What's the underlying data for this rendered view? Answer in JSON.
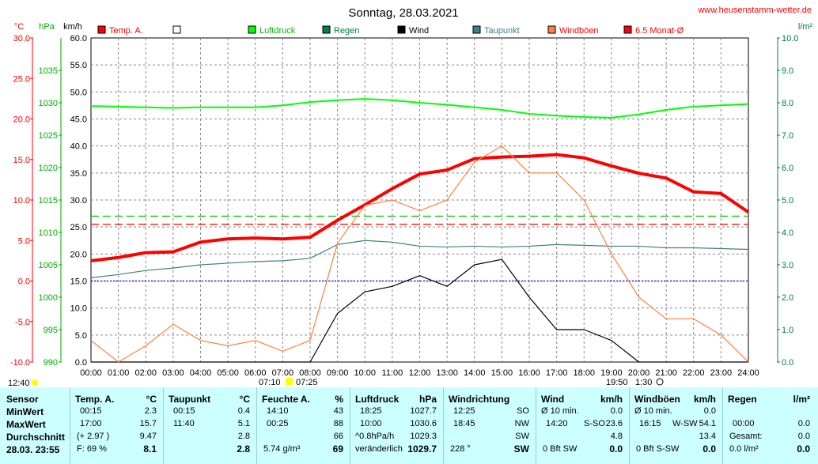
{
  "title": "Sonntag, 28.03.2021",
  "site": "www.heusenstamm-wetter.de",
  "units": {
    "temp": "°C",
    "hpa": "hPa",
    "kmh": "km/h",
    "rain": "l/m²"
  },
  "legend": [
    {
      "label": "Temp. A.",
      "color": "#ff0000"
    },
    {
      "label": "",
      "color": "#ffffff"
    },
    {
      "label": "Luftdruck",
      "color": "#00ff00"
    },
    {
      "label": "Regen",
      "color": "#008040"
    },
    {
      "label": "Wind",
      "color": "#000000"
    },
    {
      "label": "Taupunkt",
      "color": "#408080"
    },
    {
      "label": "Windböen",
      "color": "#ff8040"
    },
    {
      "label": "6.5 Monat-Ø",
      "color": "#ff0000"
    }
  ],
  "axes": {
    "temp_ticks": [
      "30.0",
      "25.0",
      "20.0",
      "15.0",
      "10.0",
      "5.0",
      "0.0",
      "-5.0",
      "-10.0"
    ],
    "hpa_ticks": [
      "1035",
      "1030",
      "1025",
      "1020",
      "1015",
      "1010",
      "1005",
      "1000",
      "995",
      "990"
    ],
    "kmh_ticks": [
      "60.0",
      "55.0",
      "50.0",
      "45.0",
      "40.0",
      "35.0",
      "30.0",
      "25.0",
      "20.0",
      "15.0",
      "10.0",
      "5.0",
      "0.0"
    ],
    "rain_ticks": [
      "10.0",
      "9.0",
      "8.0",
      "7.0",
      "6.0",
      "5.0",
      "4.0",
      "3.0",
      "2.0",
      "1.0",
      "0.0"
    ],
    "time_ticks": [
      "00:00",
      "01:00",
      "02:00",
      "03:00",
      "04:00",
      "05:00",
      "06:00",
      "07:00",
      "08:00",
      "09:00",
      "10:00",
      "11:00",
      "12:00",
      "13:00",
      "14:00",
      "15:00",
      "16:00",
      "17:00",
      "18:00",
      "19:00",
      "20:00",
      "21:00",
      "22:00",
      "23:00",
      "24:00"
    ]
  },
  "markers": {
    "left_time": "12:40",
    "sunrise": "07:10",
    "sunrise2": "07:25",
    "sunset": "19:50",
    "moon": "1:30"
  },
  "chart_data": {
    "type": "line",
    "x": [
      "00:00",
      "01:00",
      "02:00",
      "03:00",
      "04:00",
      "05:00",
      "06:00",
      "07:00",
      "08:00",
      "09:00",
      "10:00",
      "11:00",
      "12:00",
      "13:00",
      "14:00",
      "15:00",
      "16:00",
      "17:00",
      "18:00",
      "19:00",
      "20:00",
      "21:00",
      "22:00",
      "23:00",
      "24:00"
    ],
    "series": [
      {
        "name": "Temp. A.",
        "unit": "°C",
        "color": "#ff0000",
        "values": [
          2.5,
          2.9,
          3.5,
          3.6,
          4.8,
          5.2,
          5.3,
          5.2,
          5.4,
          7.5,
          9.4,
          11.4,
          13.2,
          13.7,
          15.1,
          15.3,
          15.4,
          15.6,
          15.2,
          14.2,
          13.3,
          12.7,
          11.0,
          10.8,
          8.5
        ]
      },
      {
        "name": "Luftdruck",
        "unit": "hPa",
        "color": "#00ff00",
        "values": [
          1029.5,
          1029.4,
          1029.3,
          1029.2,
          1029.3,
          1029.3,
          1029.3,
          1029.6,
          1030.1,
          1030.4,
          1030.6,
          1030.4,
          1030.0,
          1029.7,
          1029.3,
          1028.9,
          1028.3,
          1028.0,
          1027.8,
          1027.7,
          1028.2,
          1028.9,
          1029.4,
          1029.6,
          1029.8
        ]
      },
      {
        "name": "Taupunkt",
        "unit": "°C",
        "color": "#408080",
        "values": [
          0.4,
          0.8,
          1.3,
          1.6,
          2.0,
          2.2,
          2.4,
          2.5,
          2.8,
          4.5,
          5.0,
          4.8,
          4.3,
          4.2,
          4.3,
          4.2,
          4.3,
          4.5,
          4.4,
          4.3,
          4.3,
          4.1,
          4.1,
          4.0,
          3.9
        ]
      },
      {
        "name": "Wind",
        "unit": "km/h",
        "color": "#000000",
        "values": [
          0,
          0,
          0,
          0,
          0,
          0,
          0,
          0,
          0,
          9.0,
          13.0,
          14.0,
          16.0,
          14.0,
          18.0,
          19.0,
          12.0,
          6.0,
          6.0,
          4.0,
          0,
          0,
          0,
          0,
          0
        ]
      },
      {
        "name": "Windböen",
        "unit": "km/h",
        "color": "#ff8040",
        "values": [
          4,
          0,
          3,
          7,
          4,
          3,
          4,
          2,
          4,
          22,
          29,
          30,
          28,
          30,
          37,
          40,
          35,
          35,
          30,
          20,
          12,
          8,
          8,
          5,
          0
        ]
      }
    ],
    "reference_lines": [
      {
        "name": "6.5 Monat-Ø",
        "temp": 7.0,
        "color": "#ff0000"
      },
      {
        "hpa": 1012.5,
        "color": "#00c000"
      },
      {
        "kmh": 15.0,
        "color": "#0000ff"
      }
    ],
    "ylim_temp": [
      -10,
      30
    ],
    "ylim_hpa": [
      990,
      1040
    ],
    "ylim_kmh": [
      0,
      60
    ],
    "ylim_rain": [
      0,
      10
    ]
  },
  "stats": {
    "sensor": {
      "hdr": "Sensor",
      "min": "MinWert",
      "max": "MaxWert",
      "avg": "Durchschnitt",
      "date": "28.03. 23:55"
    },
    "temp": {
      "hdr": "Temp. A.",
      "unit": "°C",
      "min_time": "00:15",
      "min": "2.3",
      "max_time": "17:00",
      "max": "15.7",
      "avg_note": "(+ 2.97 )",
      "avg": "9.47",
      "cur_note": "F: 69 %",
      "cur": "8.1"
    },
    "dew": {
      "hdr": "Taupunkt",
      "unit": "°C",
      "min_time": "00:15",
      "min": "0.4",
      "max_time": "11:40",
      "max": "5.1",
      "avg": "2.8",
      "cur": "2.8"
    },
    "hum": {
      "hdr": "Feuchte A.",
      "unit": "%",
      "min_time": "14:10",
      "min": "43",
      "max_time": "00:25",
      "max": "88",
      "avg": "66",
      "cur_note": "5.74 g/m³",
      "cur": "69"
    },
    "press": {
      "hdr": "Luftdruck",
      "unit": "hPa",
      "min_time": "18:25",
      "min": "1027.7",
      "max_time": "10:00",
      "max": "1030.6",
      "avg_note": "^0.8hPa/h",
      "avg": "1029.3",
      "cur_note": "veränderlich",
      "cur": "1029.7"
    },
    "dir": {
      "hdr": "Windrichtung",
      "min_time": "12:25",
      "min": "SO",
      "max_time": "18:45",
      "max": "NW",
      "avg": "SW",
      "cur_note": "228 °",
      "cur": "SW"
    },
    "wind": {
      "hdr": "Wind",
      "unit": "km/h",
      "min_note": "Ø 10 min.",
      "min": "0.0",
      "max_time": "14:20",
      "max_dir": "S-SO",
      "max": "23.6",
      "avg": "4.8",
      "cur_note": "0 Bft SW",
      "cur": "0.0"
    },
    "gust": {
      "hdr": "Windböen",
      "unit": "km/h",
      "min_note": "Ø 10 min.",
      "min": "0.0",
      "max_time": "16:15",
      "max_dir": "W-SW",
      "max": "54.1",
      "avg": "13.4",
      "cur_note": "0 Bft S-SW",
      "cur": "0.0"
    },
    "rain": {
      "hdr": "Regen",
      "unit": "l/m²",
      "max_time": "00:00",
      "max": "0.0",
      "avg_note": "Gesamt:",
      "avg": "0.0",
      "cur_note": "0.0 l/m²",
      "cur": "0.0"
    }
  }
}
